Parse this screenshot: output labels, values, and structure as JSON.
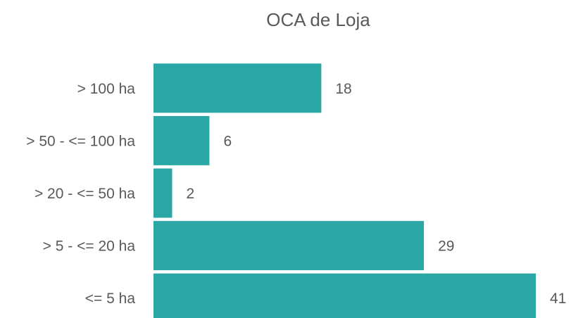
{
  "chart_data": {
    "type": "barh",
    "title": "OCA de Loja",
    "categories": [
      "> 100 ha",
      "> 50 - <= 100 ha",
      "> 20 - <= 50 ha",
      "> 5 - <= 20 ha",
      "<= 5 ha"
    ],
    "values": [
      18,
      6,
      2,
      29,
      41
    ],
    "color": "#2aa7a5"
  }
}
